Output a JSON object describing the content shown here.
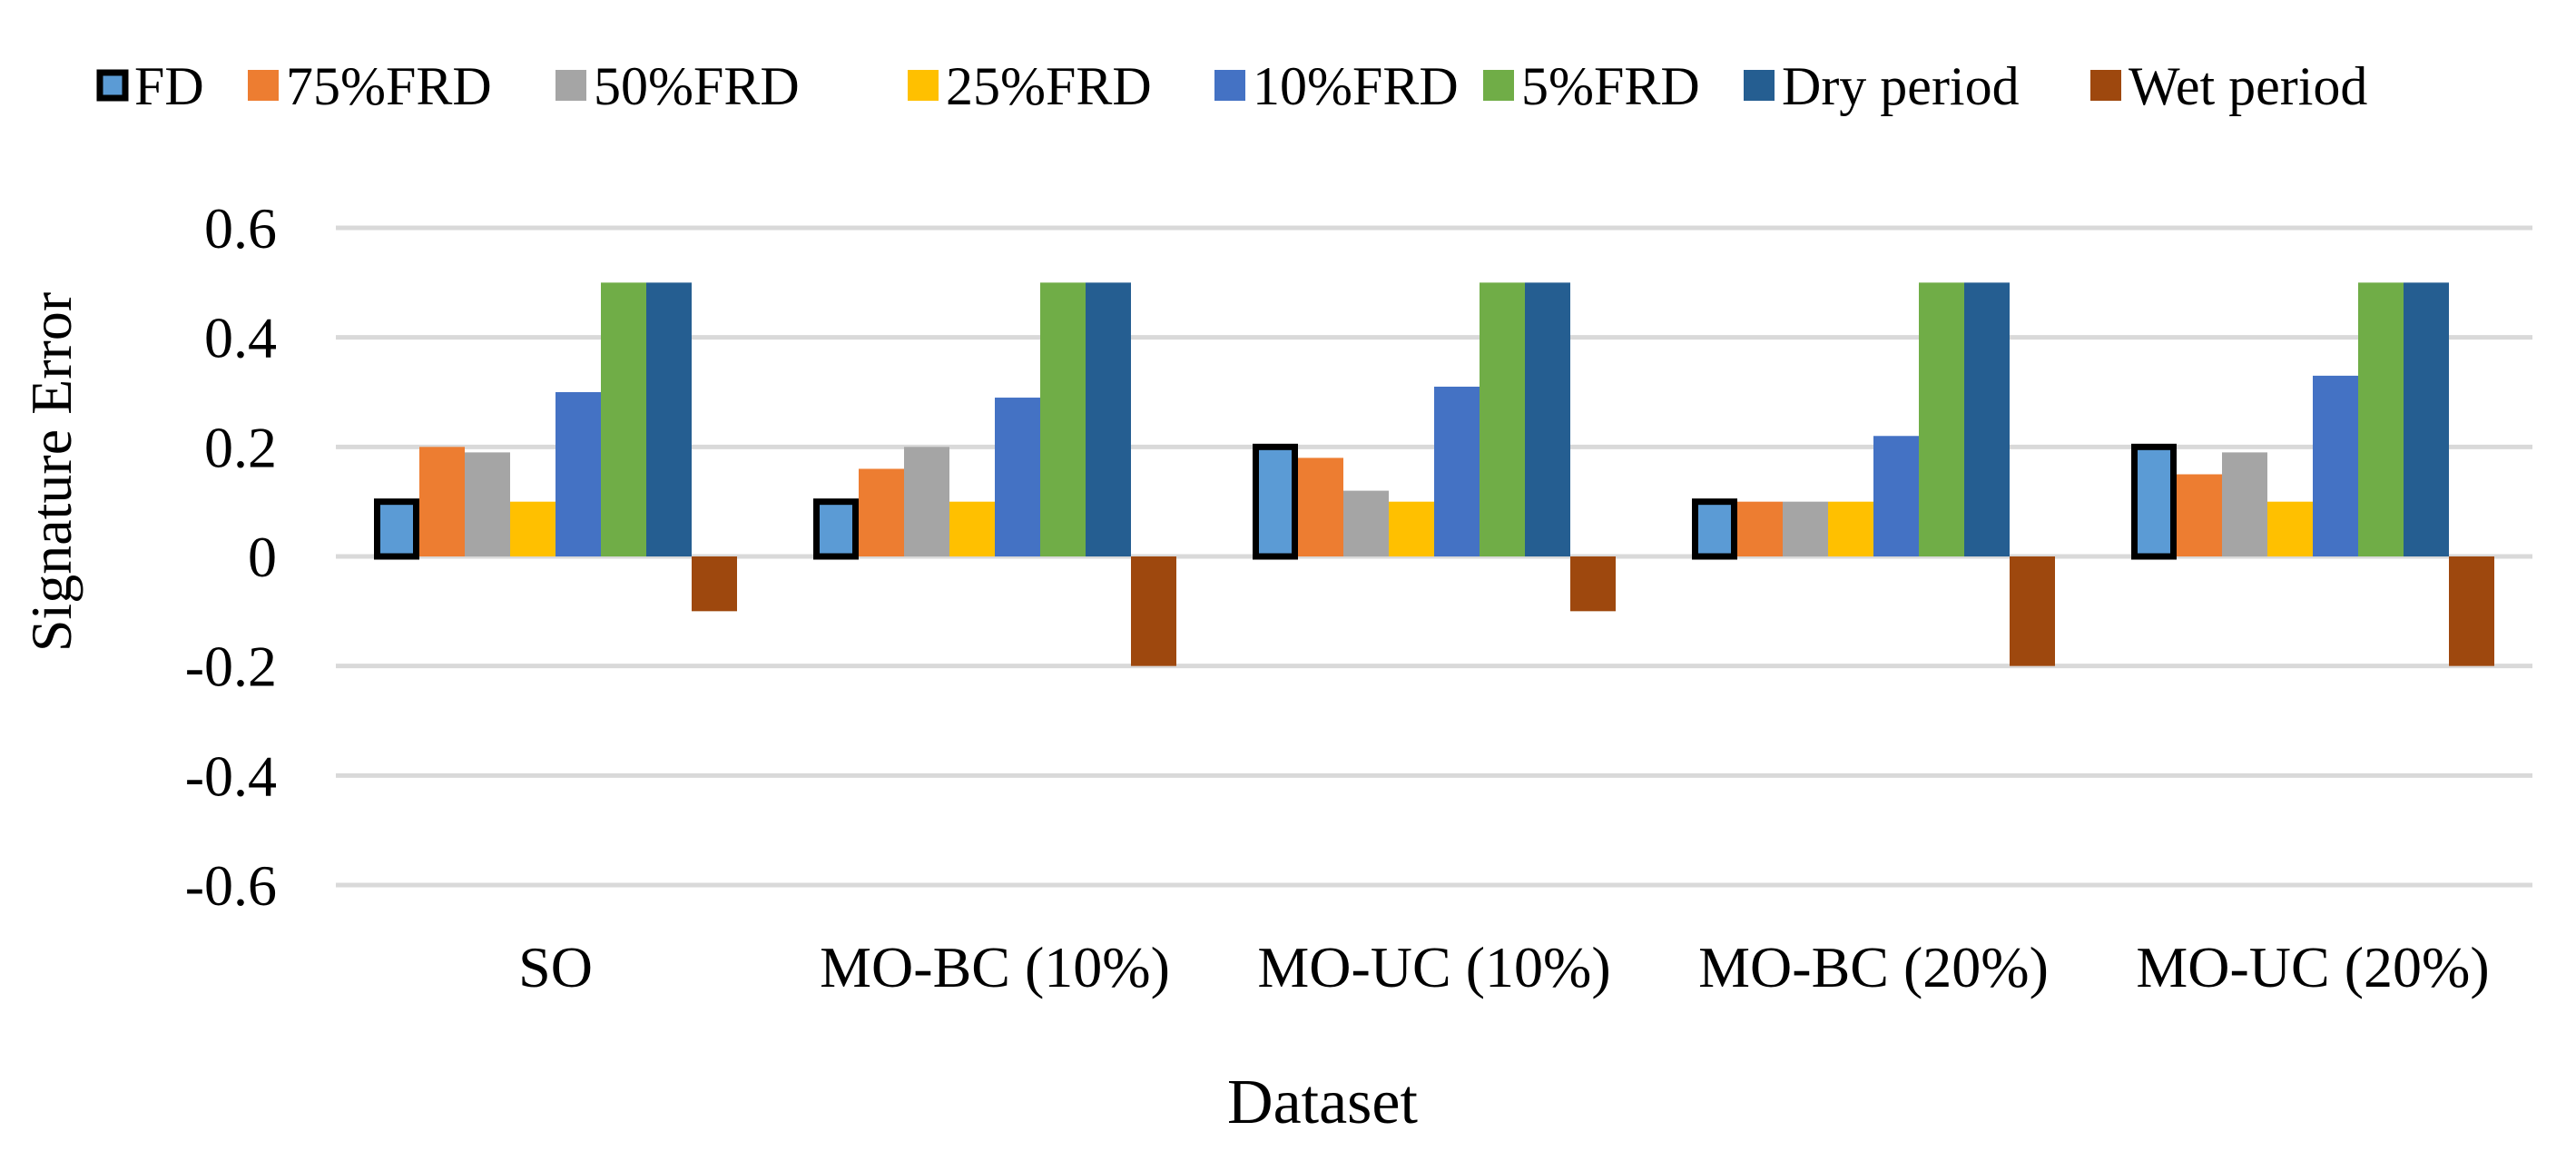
{
  "chart_data": {
    "type": "bar",
    "title": "",
    "xlabel": "Dataset",
    "ylabel": "Signature Error",
    "ylim": [
      -0.6,
      0.6
    ],
    "yticks": [
      -0.6,
      -0.4,
      -0.2,
      0,
      0.2,
      0.4,
      0.6
    ],
    "ytick_labels": [
      "-0.6",
      "-0.4",
      "-0.2",
      "0",
      "0.2",
      "0.4",
      "0.6"
    ],
    "grid": true,
    "legend_position": "top",
    "categories": [
      "SO",
      "MO-BC (10%)",
      "MO-UC (10%)",
      "MO-BC (20%)",
      "MO-UC (20%)"
    ],
    "series": [
      {
        "name": "FD",
        "color": "#5b9bd5",
        "outline": "#000000",
        "values": [
          0.1,
          0.1,
          0.2,
          0.1,
          0.2
        ]
      },
      {
        "name": "75%FRD",
        "color": "#ed7d31",
        "values": [
          0.2,
          0.16,
          0.18,
          0.1,
          0.15
        ]
      },
      {
        "name": "50%FRD",
        "color": "#a5a5a5",
        "values": [
          0.19,
          0.2,
          0.12,
          0.1,
          0.19
        ]
      },
      {
        "name": "25%FRD",
        "color": "#ffc000",
        "values": [
          0.1,
          0.1,
          0.1,
          0.1,
          0.1
        ]
      },
      {
        "name": "10%FRD",
        "color": "#4472c4",
        "values": [
          0.3,
          0.29,
          0.31,
          0.22,
          0.33
        ]
      },
      {
        "name": "5%FRD",
        "color": "#70ad47",
        "values": [
          0.5,
          0.5,
          0.5,
          0.5,
          0.5
        ]
      },
      {
        "name": "Dry period",
        "color": "#255e91",
        "values": [
          0.5,
          0.5,
          0.5,
          0.5,
          0.5
        ]
      },
      {
        "name": "Wet period",
        "color": "#9e480e",
        "values": [
          -0.1,
          -0.2,
          -0.1,
          -0.2,
          -0.2
        ]
      }
    ]
  }
}
